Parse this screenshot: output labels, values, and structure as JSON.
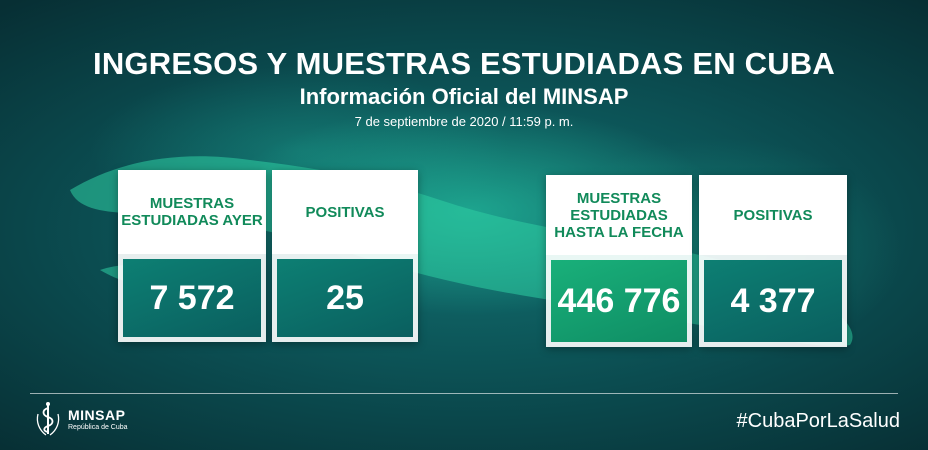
{
  "header": {
    "title": "INGRESOS Y MUESTRAS ESTUDIADAS EN CUBA",
    "subtitle": "Información Oficial del MINSAP",
    "date": "7 de septiembre de 2020 / 11:59 p. m."
  },
  "cards": [
    {
      "label": "MUESTRAS ESTUDIADAS AYER",
      "value": "7 572"
    },
    {
      "label": "POSITIVAS",
      "value": "25"
    },
    {
      "label": "MUESTRAS ESTUDIADAS HASTA LA FECHA",
      "value": "446 776"
    },
    {
      "label": "POSITIVAS",
      "value": "4 377"
    }
  ],
  "footer": {
    "logo_name": "MINSAP",
    "logo_sub": "República de Cuba",
    "hashtag": "#CubaPorLaSalud"
  },
  "colors": {
    "label_green": "#118a5a",
    "panel_teal": "#0a5f5f",
    "panel_bright_green": "#19b07a",
    "background": "#0a3a3c"
  },
  "icons": {
    "logo": "minsap-emblem-icon"
  }
}
